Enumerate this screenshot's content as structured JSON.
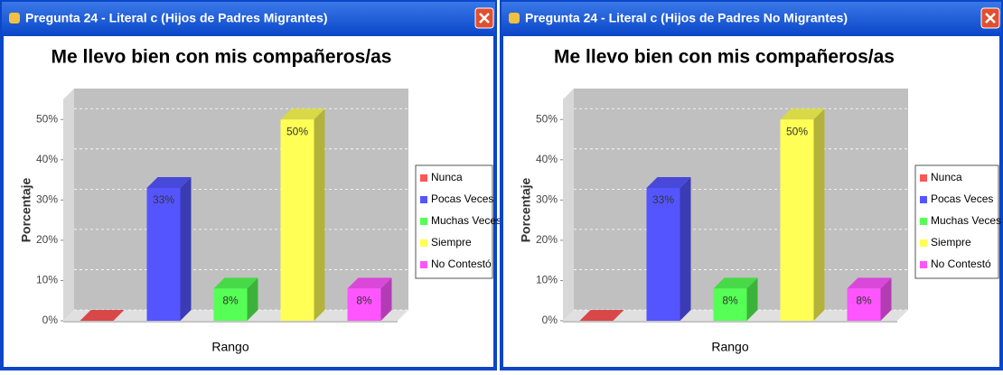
{
  "chart_data": [
    {
      "type": "bar3d",
      "window_title": "Pregunta 24 - Literal c (Hijos de Padres Migrantes)",
      "title": "Me llevo bien con mis compañeros/as",
      "ylabel": "Porcentaje",
      "xlabel": "Rango",
      "categories": [
        "Nunca",
        "Pocas Veces",
        "Muchas Veces",
        "Siempre",
        "No Contestó"
      ],
      "values": [
        0,
        33,
        8,
        50,
        8
      ],
      "value_labels": [
        null,
        "33%",
        "8%",
        "50%",
        "8%"
      ],
      "colors": [
        "#ff5555",
        "#5555ff",
        "#55ff55",
        "#ffff55",
        "#ff55ff"
      ],
      "ylim": [
        0,
        55
      ],
      "yticks": [
        {
          "value": 0,
          "label": "0%"
        },
        {
          "value": 10,
          "label": "10%"
        },
        {
          "value": 20,
          "label": "20%"
        },
        {
          "value": 30,
          "label": "30%"
        },
        {
          "value": 40,
          "label": "40%"
        },
        {
          "value": 50,
          "label": "50%"
        }
      ],
      "grid": true,
      "legend": "right"
    },
    {
      "type": "bar3d",
      "window_title": "Pregunta 24 - Literal c (Hijos de Padres No Migrantes)",
      "title": "Me llevo bien con mis compañeros/as",
      "ylabel": "Porcentaje",
      "xlabel": "Rango",
      "categories": [
        "Nunca",
        "Pocas Veces",
        "Muchas Veces",
        "Siempre",
        "No Contestó"
      ],
      "values": [
        0,
        33,
        8,
        50,
        8
      ],
      "value_labels": [
        null,
        "33%",
        "8%",
        "50%",
        "8%"
      ],
      "colors": [
        "#ff5555",
        "#5555ff",
        "#55ff55",
        "#ffff55",
        "#ff55ff"
      ],
      "ylim": [
        0,
        55
      ],
      "yticks": [
        {
          "value": 0,
          "label": "0%"
        },
        {
          "value": 10,
          "label": "10%"
        },
        {
          "value": 20,
          "label": "20%"
        },
        {
          "value": 30,
          "label": "30%"
        },
        {
          "value": 40,
          "label": "40%"
        },
        {
          "value": 50,
          "label": "50%"
        }
      ],
      "grid": true,
      "legend": "right"
    }
  ]
}
